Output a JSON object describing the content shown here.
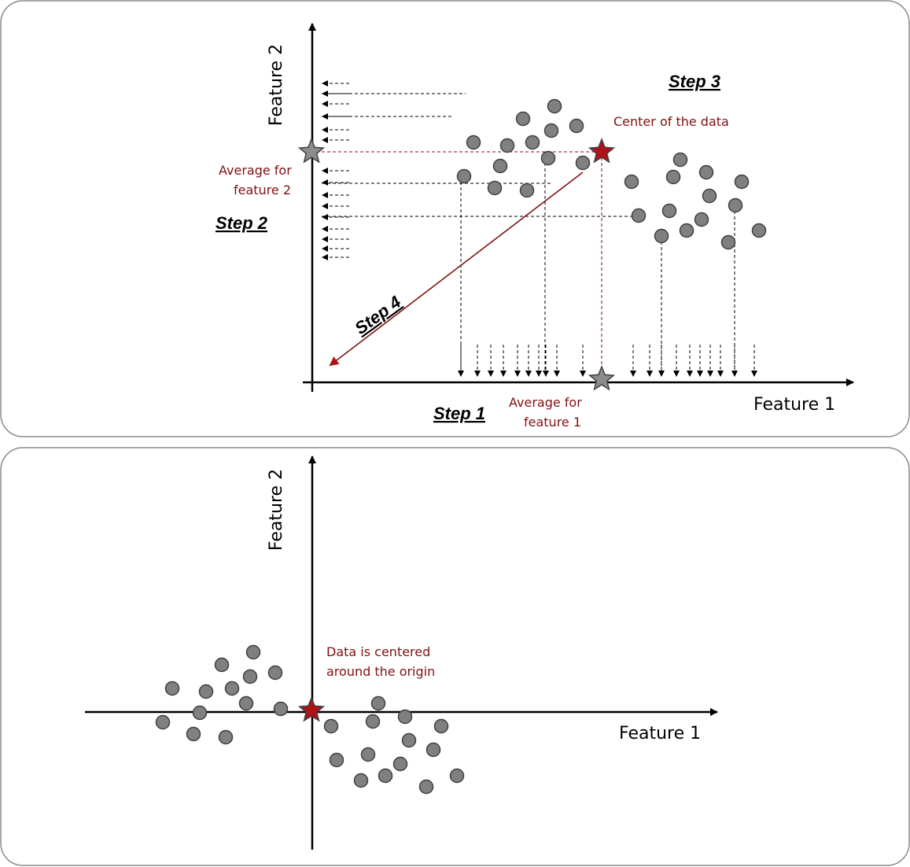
{
  "top_panel": {
    "x_axis_label": "Feature 1",
    "y_axis_label": "Feature 2",
    "steps": {
      "step1": "Step 1",
      "step2": "Step 2",
      "step3": "Step 3",
      "step4": "Step 4"
    },
    "notes": {
      "center": "Center of the data",
      "avg_f2_line1": "Average for",
      "avg_f2_line2": "feature 2",
      "avg_f1_line1": "Average for",
      "avg_f1_line2": "feature 1"
    }
  },
  "bottom_panel": {
    "x_axis_label": "Feature 1",
    "y_axis_label": "Feature 2",
    "note_line1": "Data is centered",
    "note_line2": "around the origin"
  },
  "colors": {
    "accent_red": "#7f1111",
    "star_red": "#b01218",
    "dot_grey": "#808080"
  },
  "icons": [
    "star-icon",
    "arrow-icon"
  ]
}
